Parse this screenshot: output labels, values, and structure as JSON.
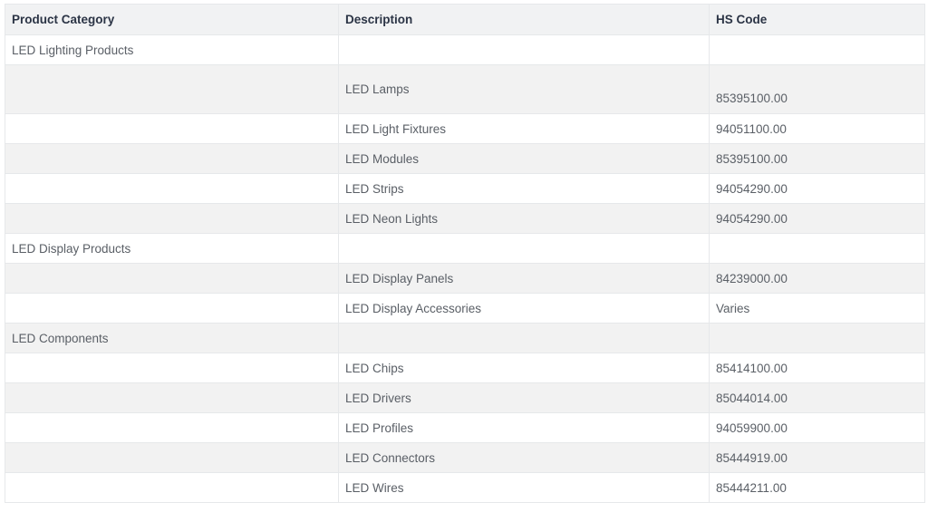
{
  "table": {
    "headers": [
      "Product Category",
      "Description",
      "HS Code"
    ],
    "rows": [
      {
        "category": "LED Lighting Products"
      },
      {
        "description": "LED Lamps",
        "hs_code": "85395100.00"
      },
      {
        "description": "LED Light Fixtures",
        "hs_code": "94051100.00"
      },
      {
        "description": "LED Modules",
        "hs_code": "85395100.00"
      },
      {
        "description": "LED Strips",
        "hs_code": "94054290.00"
      },
      {
        "description": "LED Neon Lights",
        "hs_code": "94054290.00"
      },
      {
        "category": "LED Display Products"
      },
      {
        "description": "LED Display Panels",
        "hs_code": "84239000.00"
      },
      {
        "description": "LED Display Accessories",
        "hs_code": "Varies"
      },
      {
        "category": "LED Components"
      },
      {
        "description": "LED Chips",
        "hs_code": "85414100.00"
      },
      {
        "description": "LED Drivers",
        "hs_code": "85044014.00"
      },
      {
        "description": "LED Profiles",
        "hs_code": "94059900.00"
      },
      {
        "description": "LED Connectors",
        "hs_code": "85444919.00"
      },
      {
        "description": "LED Wires",
        "hs_code": "85444211.00"
      }
    ]
  }
}
